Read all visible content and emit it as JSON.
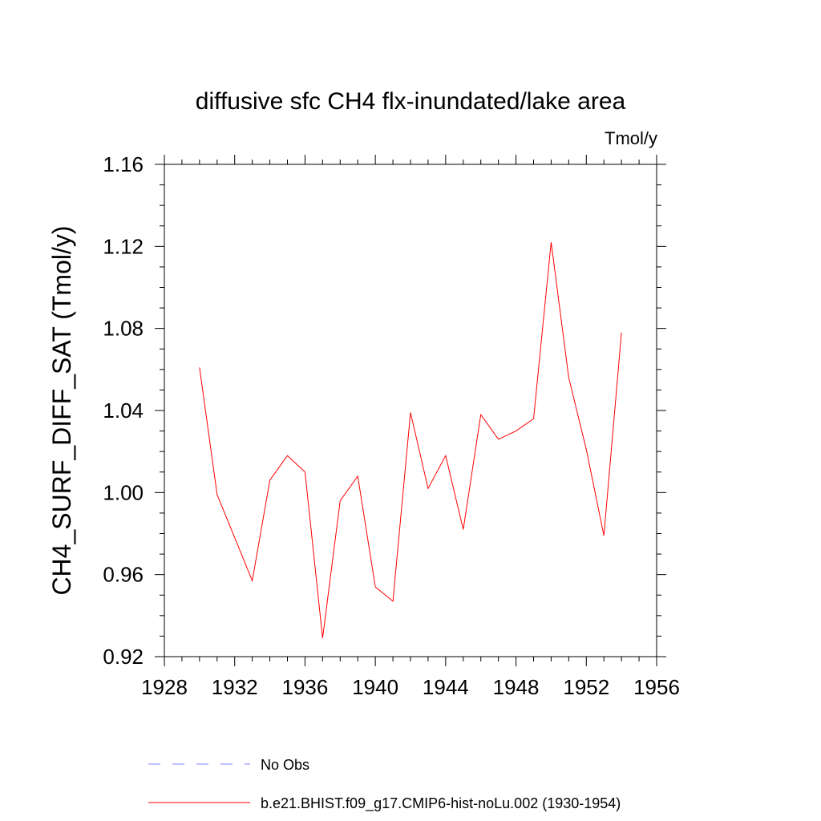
{
  "chart_data": {
    "type": "line",
    "title": "diffusive sfc CH4 flx-inundated/lake area",
    "units_label": "Tmol/y",
    "ylabel": "CH4_SURF_DIFF_SAT  (Tmol/y)",
    "xlabel": "",
    "xlim": [
      1928,
      1956
    ],
    "ylim": [
      0.92,
      1.16
    ],
    "x_ticks": [
      1928,
      1932,
      1936,
      1940,
      1944,
      1948,
      1952,
      1956
    ],
    "x_tick_labels": [
      "1928",
      "1932",
      "1936",
      "1940",
      "1944",
      "1948",
      "1952",
      "1956"
    ],
    "y_ticks": [
      0.92,
      0.96,
      1.0,
      1.04,
      1.08,
      1.12,
      1.16
    ],
    "y_tick_labels": [
      "0.92",
      "0.96",
      "1.00",
      "1.04",
      "1.08",
      "1.12",
      "1.16"
    ],
    "grid": false,
    "legend_placement": "bottom",
    "series": [
      {
        "name": "b.e21.BHIST.f09_g17.CMIP6-hist-noLu.002 (1930-1954)",
        "color": "#ff0000",
        "style": "solid",
        "x": [
          1930,
          1931,
          1932,
          1933,
          1934,
          1935,
          1936,
          1937,
          1938,
          1939,
          1940,
          1941,
          1942,
          1943,
          1944,
          1945,
          1946,
          1947,
          1948,
          1949,
          1950,
          1951,
          1952,
          1953,
          1954
        ],
        "y": [
          1.061,
          0.999,
          0.978,
          0.957,
          1.006,
          1.018,
          1.01,
          0.929,
          0.996,
          1.008,
          0.954,
          0.947,
          1.039,
          1.002,
          1.018,
          0.982,
          1.038,
          1.026,
          1.03,
          1.036,
          1.122,
          1.056,
          1.021,
          0.979,
          1.078
        ]
      }
    ],
    "legend": [
      {
        "label": "No Obs",
        "color": "#8080ff",
        "style": "dashed"
      },
      {
        "label": "b.e21.BHIST.f09_g17.CMIP6-hist-noLu.002 (1930-1954)",
        "color": "#ff0000",
        "style": "solid"
      }
    ]
  }
}
